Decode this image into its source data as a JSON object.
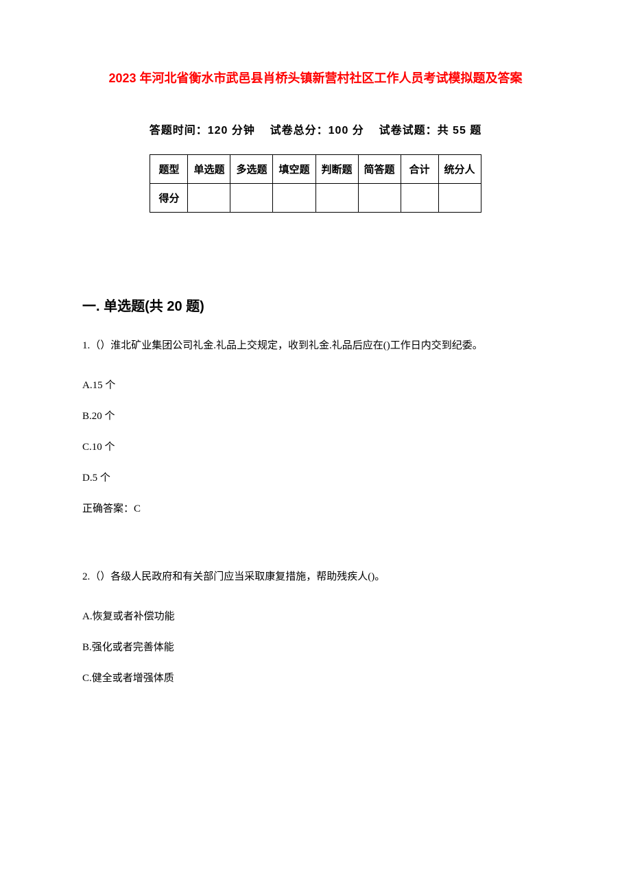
{
  "title": "2023 年河北省衡水市武邑县肖桥头镇新营村社区工作人员考试模拟题及答案",
  "title_color": "#ff0000",
  "exam_info": {
    "time_label": "答题时间：",
    "time_value": "120 分钟",
    "total_label": "试卷总分：",
    "total_value": "100 分",
    "count_label": "试卷试题：",
    "count_value": "共 55 题"
  },
  "score_table": {
    "row1": [
      "题型",
      "单选题",
      "多选题",
      "填空题",
      "判断题",
      "简答题",
      "合计",
      "统分人"
    ],
    "row2_label": "得分"
  },
  "section1": {
    "title": "一. 单选题(共 20 题)",
    "q1": {
      "text": "1.（）淮北矿业集团公司礼金.礼品上交规定，收到礼金.礼品后应在()工作日内交到纪委。",
      "options": {
        "a": "A.15 个",
        "b": "B.20 个",
        "c": "C.10 个",
        "d": "D.5 个"
      },
      "answer": "正确答案：C"
    },
    "q2": {
      "text": "2.（）各级人民政府和有关部门应当采取康复措施，帮助残疾人()。",
      "options": {
        "a": "A.恢复或者补偿功能",
        "b": "B.强化或者完善体能",
        "c": "C.健全或者增强体质"
      }
    }
  },
  "styles": {
    "background_color": "#ffffff",
    "text_color": "#000000",
    "title_fontsize": 18,
    "info_fontsize": 16,
    "section_fontsize": 20,
    "body_fontsize": 15,
    "table_border_color": "#000000"
  }
}
